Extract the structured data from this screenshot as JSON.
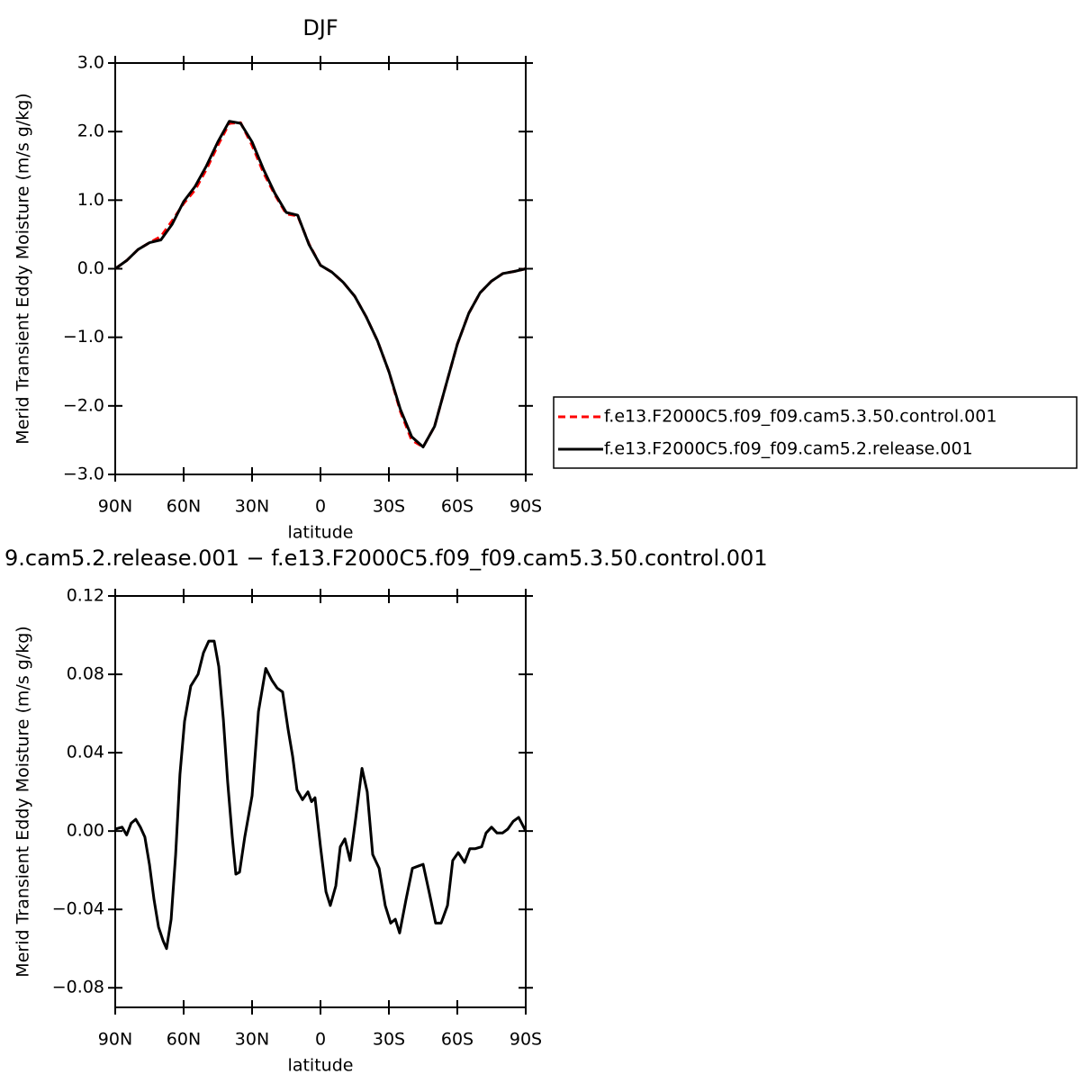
{
  "chart_data": [
    {
      "type": "line",
      "title": "DJF",
      "xlabel": "latitude",
      "ylabel": "Merid Transient Eddy Moisture (m/s g/kg)",
      "x": [
        90,
        85,
        80,
        75,
        70,
        65,
        60,
        55,
        50,
        45,
        40,
        35,
        30,
        25,
        20,
        15,
        10,
        5,
        0,
        -5,
        -10,
        -15,
        -20,
        -25,
        -30,
        -35,
        -40,
        -45,
        -50,
        -55,
        -60,
        -65,
        -70,
        -75,
        -80,
        -85,
        -90
      ],
      "series": [
        {
          "name": "f.e13.F2000C5.f09_f09.cam5.3.50.control.001",
          "color": "#ff0000",
          "dash": true,
          "values": [
            0.0,
            0.12,
            0.28,
            0.38,
            0.47,
            0.7,
            0.95,
            1.15,
            1.45,
            1.8,
            2.12,
            2.13,
            1.8,
            1.4,
            1.08,
            0.8,
            0.77,
            0.36,
            0.05,
            -0.05,
            -0.2,
            -0.4,
            -0.7,
            -1.05,
            -1.5,
            -2.08,
            -2.5,
            -2.6,
            -2.3,
            -1.7,
            -1.1,
            -0.65,
            -0.35,
            -0.18,
            -0.07,
            -0.04,
            0.0
          ]
        },
        {
          "name": "f.e13.F2000C5.f09_f09.cam5.2.release.001",
          "color": "#000000",
          "dash": false,
          "values": [
            0.0,
            0.12,
            0.28,
            0.38,
            0.42,
            0.65,
            0.98,
            1.2,
            1.5,
            1.85,
            2.15,
            2.12,
            1.85,
            1.45,
            1.1,
            0.82,
            0.78,
            0.35,
            0.05,
            -0.05,
            -0.2,
            -0.4,
            -0.7,
            -1.05,
            -1.5,
            -2.05,
            -2.45,
            -2.6,
            -2.3,
            -1.7,
            -1.1,
            -0.65,
            -0.35,
            -0.18,
            -0.07,
            -0.04,
            0.0
          ]
        }
      ],
      "xlim": [
        90,
        -90
      ],
      "xticks": [
        {
          "value": 90,
          "label": "90N"
        },
        {
          "value": 60,
          "label": "60N"
        },
        {
          "value": 30,
          "label": "30N"
        },
        0,
        {
          "value": -30,
          "label": "30S"
        },
        {
          "value": -60,
          "label": "60S"
        },
        {
          "value": -90,
          "label": "90S"
        }
      ],
      "ylim": [
        -3,
        3
      ],
      "yticks": [
        {
          "value": 3,
          "label": "3.0"
        },
        {
          "value": 2,
          "label": "2.0"
        },
        {
          "value": 1,
          "label": "1.0"
        },
        {
          "value": 0,
          "label": "0.0"
        },
        {
          "value": -1,
          "label": "−1.0"
        },
        {
          "value": -2,
          "label": "−2.0"
        },
        {
          "value": -3,
          "label": "−3.0"
        }
      ],
      "legend": "right"
    },
    {
      "type": "line",
      "title": "9.cam5.2.release.001 − f.e13.F2000C5.f09_f09.cam5.3.50.control.001",
      "xlabel": "latitude",
      "ylabel": "Merid Transient Eddy Moisture (m/s g/kg)",
      "x": [
        90,
        87,
        85,
        83,
        81,
        79,
        77,
        75,
        73,
        71,
        69,
        67.5,
        65.5,
        63.5,
        61.6,
        59.6,
        56.9,
        53.7,
        51.3,
        49,
        46.6,
        44.6,
        42.6,
        40.7,
        38.7,
        37.1,
        35.5,
        33.2,
        30,
        27.2,
        24,
        21.3,
        19,
        16.6,
        14.2,
        12.2,
        10.3,
        7.9,
        5.5,
        3.9,
        2.4,
        0,
        -2.4,
        -4.3,
        -6.7,
        -8.7,
        -10.7,
        -13,
        -15.4,
        -18.2,
        -20.5,
        -22.9,
        -25.7,
        -28.4,
        -30.8,
        -32.8,
        -34.7,
        -37.5,
        -40.3,
        -42.6,
        -45,
        -47.8,
        -50.5,
        -52.9,
        -55.7,
        -58,
        -60.4,
        -63.2,
        -65.5,
        -67.9,
        -70.7,
        -72.6,
        -75,
        -77.4,
        -79.8,
        -82.1,
        -84.5,
        -86.9,
        -90
      ],
      "series": [
        {
          "color": "#000000",
          "dash": false,
          "values": [
            0.001,
            0.002,
            -0.002,
            0.004,
            0.006,
            0.002,
            -0.003,
            -0.017,
            -0.035,
            -0.049,
            -0.056,
            -0.06,
            -0.045,
            -0.012,
            0.029,
            0.056,
            0.074,
            0.08,
            0.091,
            0.097,
            0.097,
            0.084,
            0.057,
            0.025,
            -0.003,
            -0.022,
            -0.021,
            -0.003,
            0.018,
            0.061,
            0.083,
            0.077,
            0.073,
            0.071,
            0.052,
            0.038,
            0.021,
            0.016,
            0.02,
            0.015,
            0.017,
            -0.008,
            -0.031,
            -0.038,
            -0.028,
            -0.008,
            -0.004,
            -0.015,
            0.006,
            0.032,
            0.02,
            -0.012,
            -0.019,
            -0.038,
            -0.047,
            -0.045,
            -0.052,
            -0.035,
            -0.019,
            -0.018,
            -0.017,
            -0.032,
            -0.047,
            -0.047,
            -0.038,
            -0.015,
            -0.011,
            -0.016,
            -0.009,
            -0.009,
            -0.008,
            -0.001,
            0.002,
            -0.001,
            -0.001,
            0.001,
            0.005,
            0.007,
            0.0
          ]
        }
      ],
      "xlim": [
        90,
        -90
      ],
      "xticks": [
        {
          "value": 90,
          "label": "90N"
        },
        {
          "value": 60,
          "label": "60N"
        },
        {
          "value": 30,
          "label": "30N"
        },
        0,
        {
          "value": -30,
          "label": "30S"
        },
        {
          "value": -60,
          "label": "60S"
        },
        {
          "value": -90,
          "label": "90S"
        }
      ],
      "ylim": [
        -0.09,
        0.12
      ],
      "yticks": [
        {
          "value": 0.12,
          "label": "0.12"
        },
        {
          "value": 0.08,
          "label": "0.08"
        },
        {
          "value": 0.04,
          "label": "0.04"
        },
        {
          "value": 0,
          "label": "0.00"
        },
        {
          "value": -0.04,
          "label": "−0.04"
        },
        {
          "value": -0.08,
          "label": "−0.08"
        }
      ]
    }
  ]
}
